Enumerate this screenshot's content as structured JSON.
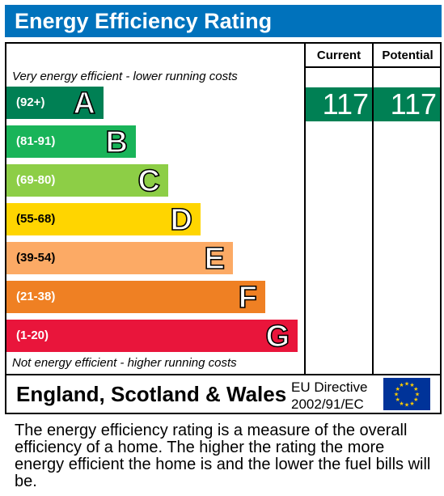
{
  "title": "Energy Efficiency Rating",
  "columns": {
    "current": "Current",
    "potential": "Potential"
  },
  "top_note": "Very energy efficient - lower running costs",
  "bottom_note": "Not energy efficient - higher running costs",
  "colors": {
    "title_bar": "#0072bc",
    "band_A": "#008054",
    "band_B": "#19b459",
    "band_C": "#8dce46",
    "band_D": "#ffd500",
    "band_E": "#fcaa65",
    "band_F": "#ef8023",
    "band_G": "#e9153b",
    "eu_blue": "#003399",
    "eu_star": "#ffcc00"
  },
  "chart_data": {
    "type": "bar",
    "title": "Energy Efficiency Rating",
    "bands": [
      {
        "letter": "A",
        "range": "(92+)"
      },
      {
        "letter": "B",
        "range": "(81-91)"
      },
      {
        "letter": "C",
        "range": "(69-80)"
      },
      {
        "letter": "D",
        "range": "(55-68)"
      },
      {
        "letter": "E",
        "range": "(39-54)"
      },
      {
        "letter": "F",
        "range": "(21-38)"
      },
      {
        "letter": "G",
        "range": "(1-20)"
      }
    ],
    "current": {
      "value": "117",
      "band": "A"
    },
    "potential": {
      "value": "117",
      "band": "A"
    }
  },
  "region": "England, Scotland & Wales",
  "directive": {
    "line1": "EU Directive",
    "line2": "2002/91/EC"
  },
  "eu_flag_icon": "eu-flag-icon",
  "footer": "The energy efficiency rating is a measure of the overall efficiency of a home. The higher the rating the more energy efficient the home is and the lower the fuel bills will be."
}
